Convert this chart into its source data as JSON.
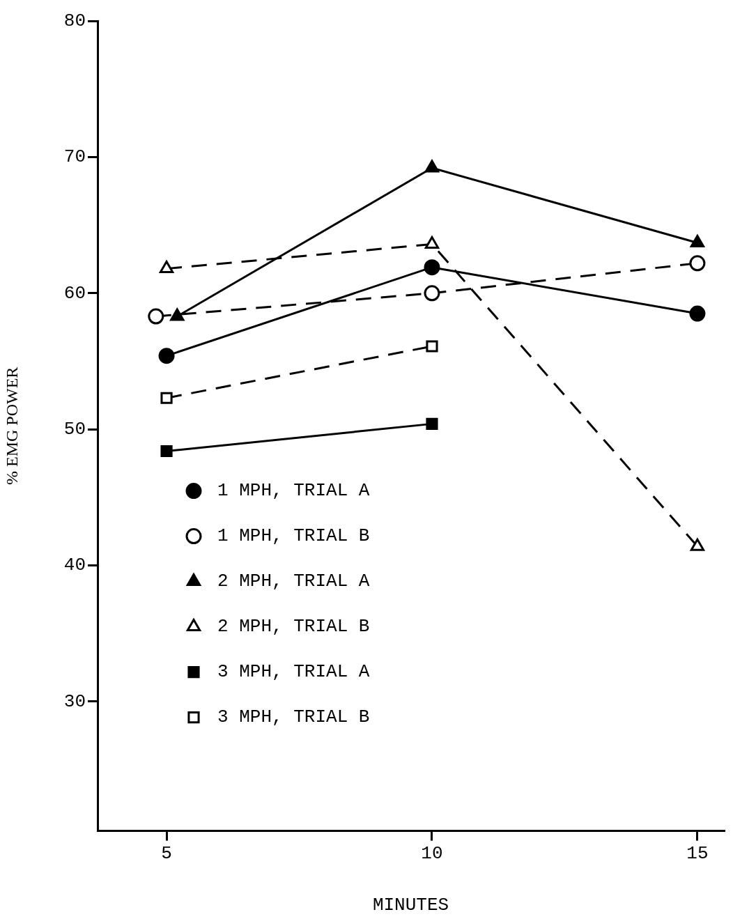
{
  "chart_data": {
    "type": "line",
    "xlabel": "MINUTES",
    "ylabel": "% EMG POWER",
    "x": [
      5,
      10,
      15
    ],
    "xlim": [
      3.7,
      15.5
    ],
    "xticks": [
      5,
      10,
      15
    ],
    "ylim": [
      20.5,
      80
    ],
    "yticks": [
      30,
      40,
      50,
      60,
      70,
      80
    ],
    "grid": false,
    "legend": "bottom left",
    "series": [
      {
        "name": "1 MPH, TRIAL A",
        "color": "#000000",
        "marker": "circle",
        "line_style": "solid",
        "values": [
          55.4,
          61.9,
          58.5
        ]
      },
      {
        "name": "1 MPH, TRIAL B",
        "color": "#000000",
        "marker": "circle",
        "line_style": "dashed",
        "x": [
          4.8,
          10,
          15
        ],
        "values": [
          58.3,
          60.0,
          62.2
        ]
      },
      {
        "name": "2 MPH, TRIAL A",
        "color": "#000000",
        "marker": "triangle",
        "line_style": "solid",
        "x": [
          5.2,
          10,
          15
        ],
        "values": [
          58.3,
          69.2,
          63.7
        ]
      },
      {
        "name": "2 MPH, TRIAL B",
        "color": "#000000",
        "marker": "triangle",
        "line_style": "dashed",
        "values": [
          61.8,
          63.6,
          41.4
        ]
      },
      {
        "name": "3 MPH, TRIAL A",
        "color": "#000000",
        "marker": "square",
        "line_style": "solid",
        "values": [
          48.4,
          50.4,
          null
        ]
      },
      {
        "name": "3 MPH, TRIAL B",
        "color": "#000000",
        "marker": "square",
        "line_style": "dashed",
        "values": [
          52.3,
          56.1,
          null
        ]
      }
    ]
  }
}
